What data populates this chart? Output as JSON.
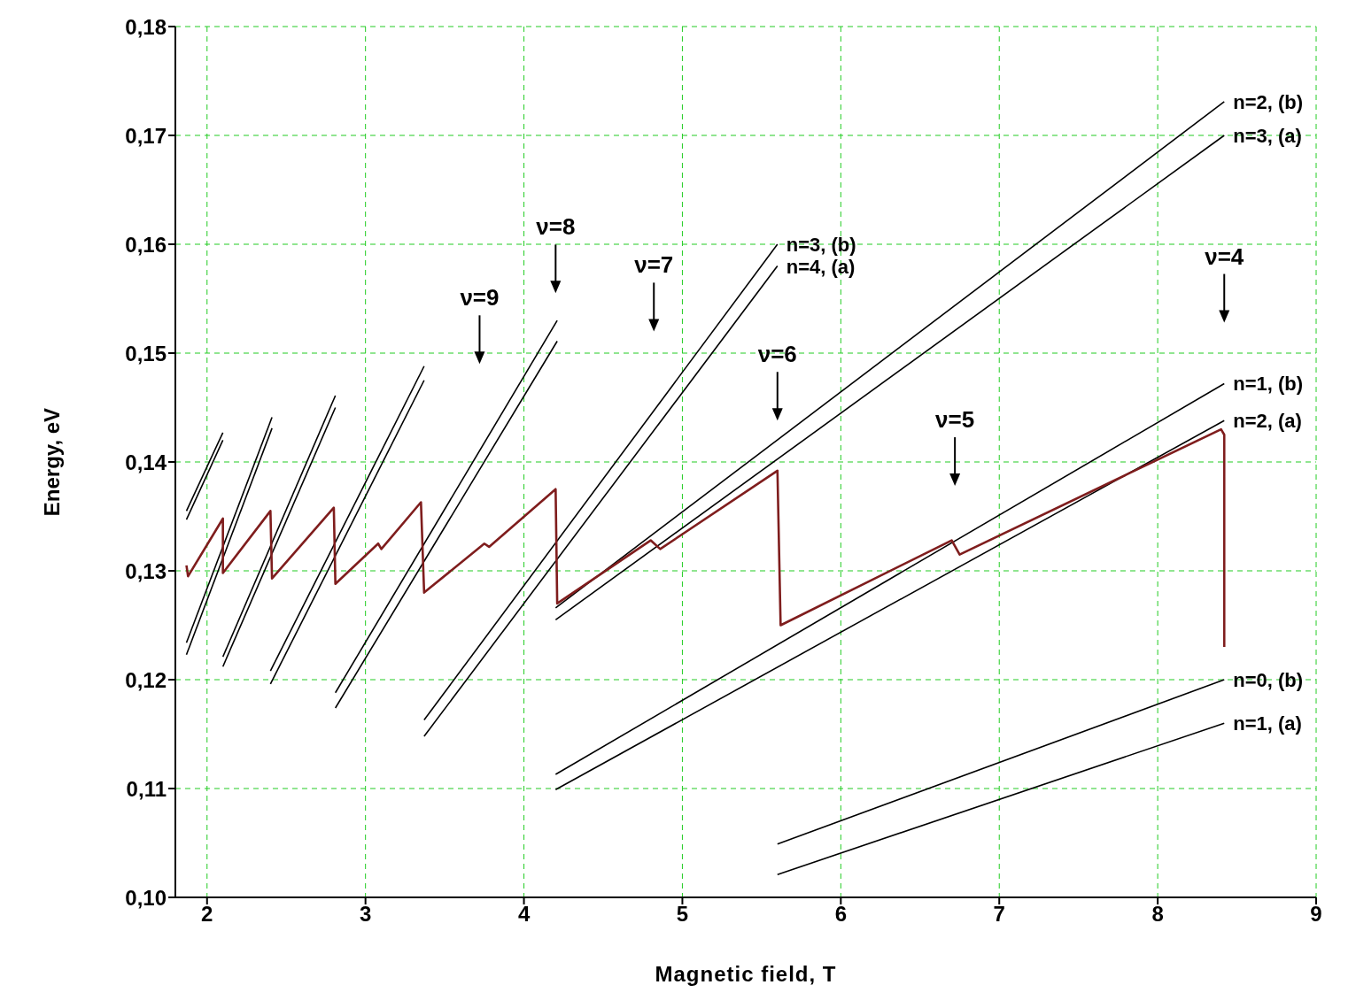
{
  "chart_data": {
    "type": "line",
    "xlabel": "Magnetic field, T",
    "ylabel": "Energy, eV",
    "xlim": [
      1.8,
      9
    ],
    "xticks": [
      2,
      3,
      4,
      5,
      6,
      7,
      8,
      9
    ],
    "ylim": [
      0.1,
      0.18
    ],
    "yticks": [
      {
        "value": 0.1,
        "label": "0,10"
      },
      {
        "value": 0.11,
        "label": "0,11"
      },
      {
        "value": 0.12,
        "label": "0,12"
      },
      {
        "value": 0.13,
        "label": "0,13"
      },
      {
        "value": 0.14,
        "label": "0,14"
      },
      {
        "value": 0.15,
        "label": "0,15"
      },
      {
        "value": 0.16,
        "label": "0,16"
      },
      {
        "value": 0.17,
        "label": "0,17"
      },
      {
        "value": 0.18,
        "label": "0,18"
      }
    ],
    "grid": true,
    "marker": "none",
    "line_style": "solid",
    "series": [
      {
        "color": "#000000",
        "x": [
          1.87,
          2.1
        ],
        "values": [
          0.1355,
          0.1427
        ]
      },
      {
        "color": "#000000",
        "x": [
          1.87,
          2.1
        ],
        "values": [
          0.1347,
          0.142
        ]
      },
      {
        "color": "#000000",
        "x": [
          1.87,
          2.41
        ],
        "values": [
          0.1234,
          0.1441
        ]
      },
      {
        "color": "#000000",
        "x": [
          1.87,
          2.41
        ],
        "values": [
          0.1223,
          0.1431
        ]
      },
      {
        "color": "#000000",
        "x": [
          2.1,
          2.81
        ],
        "values": [
          0.1221,
          0.1461
        ]
      },
      {
        "color": "#000000",
        "x": [
          2.1,
          2.81
        ],
        "values": [
          0.1212,
          0.145
        ]
      },
      {
        "color": "#000000",
        "x": [
          2.4,
          3.37
        ],
        "values": [
          0.1208,
          0.1488
        ]
      },
      {
        "color": "#000000",
        "x": [
          2.4,
          3.37
        ],
        "values": [
          0.1196,
          0.1475
        ]
      },
      {
        "color": "#000000",
        "x": [
          2.81,
          4.21
        ],
        "values": [
          0.1188,
          0.153
        ]
      },
      {
        "color": "#000000",
        "x": [
          2.81,
          4.21
        ],
        "values": [
          0.1174,
          0.1511
        ]
      },
      {
        "name": "n=3, (b)",
        "color": "#000000",
        "x": [
          3.37,
          5.6
        ],
        "values": [
          0.1163,
          0.16
        ]
      },
      {
        "name": "n=4, (a)",
        "color": "#000000",
        "x": [
          3.37,
          5.6
        ],
        "values": [
          0.1148,
          0.158
        ]
      },
      {
        "name": "n=2, (b)",
        "color": "#000000",
        "x": [
          4.2,
          8.42
        ],
        "values": [
          0.1266,
          0.1731
        ]
      },
      {
        "name": "n=3, (a)",
        "color": "#000000",
        "x": [
          4.2,
          8.42
        ],
        "values": [
          0.1255,
          0.17
        ]
      },
      {
        "name": "n=1, (b)",
        "color": "#000000",
        "x": [
          4.2,
          8.42
        ],
        "values": [
          0.1113,
          0.1472
        ]
      },
      {
        "name": "n=2, (a)",
        "color": "#000000",
        "x": [
          4.2,
          8.42
        ],
        "values": [
          0.1099,
          0.1438
        ]
      },
      {
        "name": "n=0, (b)",
        "color": "#000000",
        "x": [
          5.6,
          8.42
        ],
        "values": [
          0.1049,
          0.12
        ]
      },
      {
        "name": "n=1, (a)",
        "color": "#000000",
        "x": [
          5.6,
          8.42
        ],
        "values": [
          0.1021,
          0.116
        ]
      },
      {
        "color": "#7f1d1d",
        "x": [
          1.87,
          1.88,
          2.1,
          2.1,
          2.4,
          2.41,
          2.8,
          2.81,
          3.08,
          3.1,
          3.35,
          3.37,
          3.75,
          3.78,
          4.2,
          4.21,
          4.8,
          4.86,
          5.6,
          5.62,
          6.7,
          6.75,
          8.4,
          8.42,
          8.42
        ],
        "values": [
          0.1305,
          0.1295,
          0.1348,
          0.1298,
          0.1355,
          0.1293,
          0.1358,
          0.1288,
          0.1325,
          0.132,
          0.1363,
          0.128,
          0.1325,
          0.1322,
          0.1375,
          0.127,
          0.1328,
          0.132,
          0.1392,
          0.125,
          0.1328,
          0.1315,
          0.143,
          0.1425,
          0.123
        ]
      }
    ],
    "annotations": [
      "ν=9",
      "ν=8",
      "ν=7",
      "ν=6",
      "ν=5",
      "ν=4"
    ]
  }
}
